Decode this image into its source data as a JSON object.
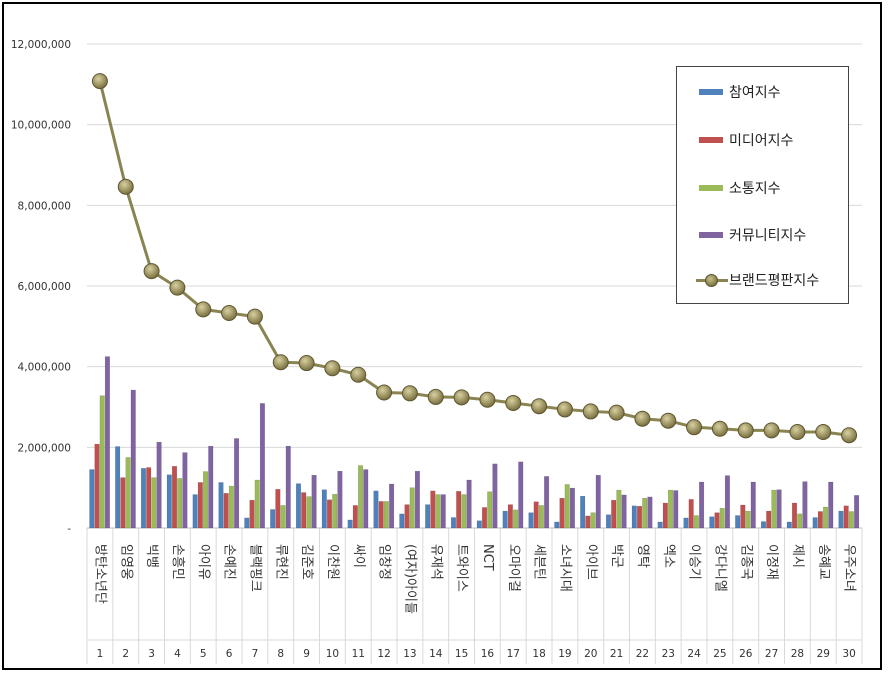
{
  "chart_data": {
    "type": "bar",
    "title": "",
    "xlabel": "",
    "ylabel": "",
    "ylim": [
      0,
      12000000
    ],
    "yticks": [
      0,
      2000000,
      4000000,
      6000000,
      8000000,
      10000000,
      12000000
    ],
    "ytick_labels": [
      "-",
      "2,000,000",
      "4,000,000",
      "6,000,000",
      "8,000,000",
      "10,000,000",
      "12,000,000"
    ],
    "grid": true,
    "legend_position": "top-right",
    "ranks": [
      "1",
      "2",
      "3",
      "4",
      "5",
      "6",
      "7",
      "8",
      "9",
      "10",
      "11",
      "12",
      "13",
      "14",
      "15",
      "16",
      "17",
      "18",
      "19",
      "20",
      "21",
      "22",
      "23",
      "24",
      "25",
      "26",
      "27",
      "28",
      "29",
      "30"
    ],
    "categories": [
      "방탄소년단",
      "임영웅",
      "빅뱅",
      "손흥민",
      "아이유",
      "손예진",
      "블랙핑크",
      "류현진",
      "김준호",
      "이찬원",
      "싸이",
      "임창정",
      "(여자)아이들",
      "유재석",
      "트와이스",
      "NCT",
      "오마이걸",
      "세븐틴",
      "소녀시대",
      "아이브",
      "박군",
      "영탁",
      "엑소",
      "이승기",
      "강다니엘",
      "김종국",
      "이정재",
      "제시",
      "송혜교",
      "우주소녀"
    ],
    "series": [
      {
        "name": "참여지수",
        "kind": "bar",
        "color": "#4f81bd",
        "values": [
          1450000,
          2020000,
          1480000,
          1320000,
          830000,
          1130000,
          250000,
          460000,
          1100000,
          950000,
          200000,
          920000,
          350000,
          580000,
          260000,
          180000,
          420000,
          380000,
          150000,
          790000,
          330000,
          550000,
          150000,
          250000,
          280000,
          310000,
          160000,
          150000,
          260000,
          420000
        ]
      },
      {
        "name": "미디어지수",
        "kind": "bar",
        "color": "#c0504d",
        "values": [
          2080000,
          1250000,
          1500000,
          1530000,
          1130000,
          860000,
          690000,
          960000,
          880000,
          700000,
          560000,
          660000,
          580000,
          920000,
          910000,
          510000,
          580000,
          650000,
          740000,
          300000,
          690000,
          540000,
          620000,
          710000,
          380000,
          570000,
          420000,
          620000,
          410000,
          550000
        ]
      },
      {
        "name": "소통지수",
        "kind": "bar",
        "color": "#9bbb59",
        "values": [
          3280000,
          1750000,
          1250000,
          1230000,
          1400000,
          1040000,
          1190000,
          560000,
          780000,
          840000,
          1550000,
          660000,
          1000000,
          830000,
          830000,
          900000,
          450000,
          560000,
          1080000,
          380000,
          940000,
          740000,
          940000,
          310000,
          490000,
          420000,
          940000,
          350000,
          520000,
          410000
        ]
      },
      {
        "name": "커뮤니티지수",
        "kind": "bar",
        "color": "#8064a2",
        "values": [
          4250000,
          3420000,
          2130000,
          1870000,
          2030000,
          2220000,
          3090000,
          2030000,
          1310000,
          1410000,
          1450000,
          1090000,
          1410000,
          830000,
          1190000,
          1590000,
          1640000,
          1280000,
          990000,
          1310000,
          820000,
          770000,
          930000,
          1140000,
          1300000,
          1140000,
          950000,
          1150000,
          1140000,
          810000
        ]
      },
      {
        "name": "브랜드평판지수",
        "kind": "line",
        "color": "#8a8452",
        "values": [
          11080000,
          8460000,
          6370000,
          5960000,
          5420000,
          5330000,
          5240000,
          4110000,
          4090000,
          3960000,
          3800000,
          3360000,
          3340000,
          3250000,
          3240000,
          3180000,
          3100000,
          3020000,
          2940000,
          2890000,
          2860000,
          2710000,
          2660000,
          2500000,
          2460000,
          2420000,
          2420000,
          2380000,
          2380000,
          2300000
        ]
      }
    ]
  }
}
